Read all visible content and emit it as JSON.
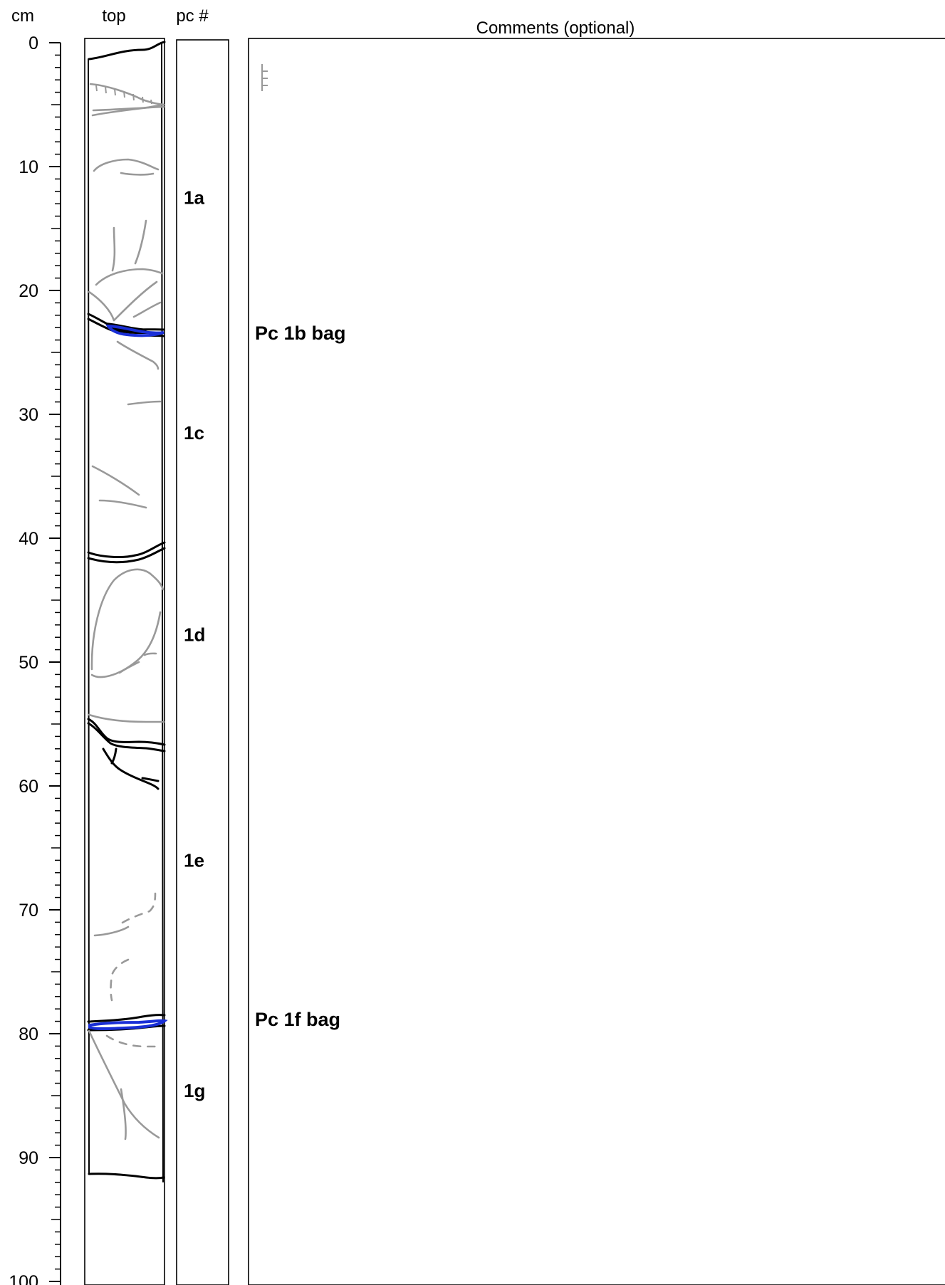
{
  "headers": {
    "depth_unit": "cm",
    "top": "top",
    "piece_number": "pc #",
    "comments": "Comments (optional)"
  },
  "depth_scale": {
    "min": 0,
    "max": 100,
    "labels": [
      "0",
      "10",
      "20",
      "30",
      "40",
      "50",
      "60",
      "70",
      "80",
      "90",
      "100"
    ]
  },
  "pieces": [
    {
      "label": "1a",
      "depth": 12.5
    },
    {
      "label": "1c",
      "depth": 31.5
    },
    {
      "label": "1d",
      "depth": 47.8
    },
    {
      "label": "1e",
      "depth": 66
    },
    {
      "label": "1g",
      "depth": 84.6
    }
  ],
  "comments": [
    {
      "text": "Pc 1b bag",
      "depth": 23.4
    },
    {
      "text": "Pc 1f bag",
      "depth": 78.8
    }
  ],
  "colors": {
    "ink": "#000000",
    "sketch_gray": "#999999",
    "bag_marker_blue": "#1a2fd6"
  }
}
